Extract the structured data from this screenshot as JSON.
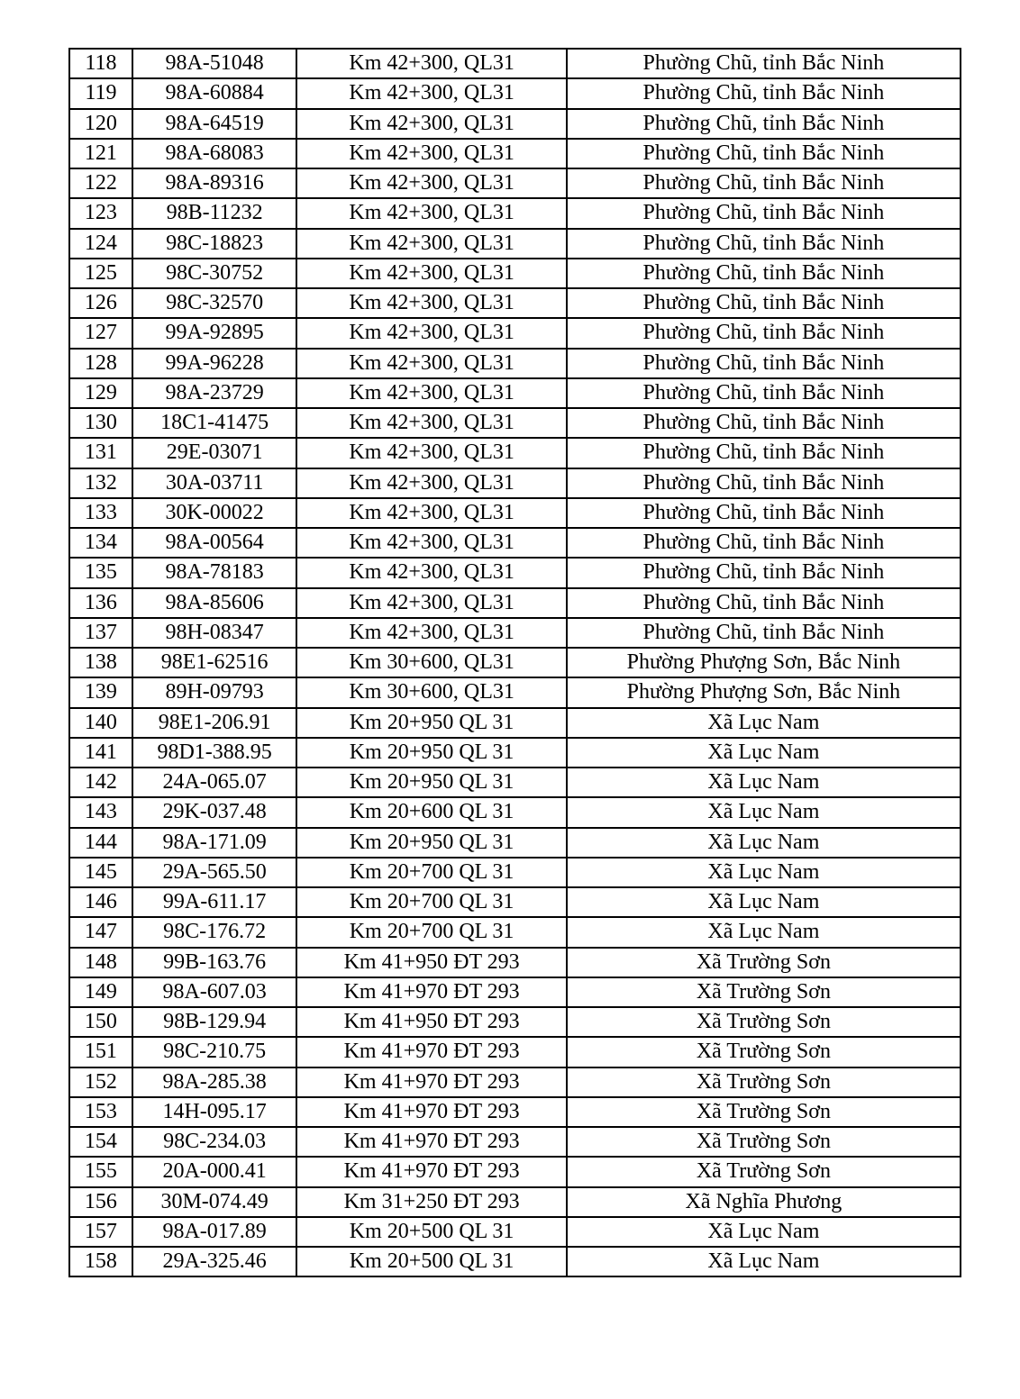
{
  "rows": [
    [
      "118",
      "98A-51048",
      "Km 42+300, QL31",
      "Phường Chũ, tỉnh Bắc Ninh"
    ],
    [
      "119",
      "98A-60884",
      "Km 42+300, QL31",
      "Phường Chũ, tỉnh Bắc Ninh"
    ],
    [
      "120",
      "98A-64519",
      "Km 42+300, QL31",
      "Phường Chũ, tỉnh Bắc Ninh"
    ],
    [
      "121",
      "98A-68083",
      "Km 42+300, QL31",
      "Phường Chũ, tỉnh Bắc Ninh"
    ],
    [
      "122",
      "98A-89316",
      "Km 42+300, QL31",
      "Phường Chũ, tỉnh Bắc Ninh"
    ],
    [
      "123",
      "98B-11232",
      "Km 42+300, QL31",
      "Phường Chũ, tỉnh Bắc Ninh"
    ],
    [
      "124",
      "98C-18823",
      "Km 42+300, QL31",
      "Phường Chũ, tỉnh Bắc Ninh"
    ],
    [
      "125",
      "98C-30752",
      "Km 42+300, QL31",
      "Phường Chũ, tỉnh Bắc Ninh"
    ],
    [
      "126",
      "98C-32570",
      "Km 42+300, QL31",
      "Phường Chũ, tỉnh Bắc Ninh"
    ],
    [
      "127",
      "99A-92895",
      "Km 42+300, QL31",
      "Phường Chũ, tỉnh Bắc Ninh"
    ],
    [
      "128",
      "99A-96228",
      "Km 42+300, QL31",
      "Phường Chũ, tỉnh Bắc Ninh"
    ],
    [
      "129",
      "98A-23729",
      "Km 42+300, QL31",
      "Phường Chũ, tỉnh Bắc Ninh"
    ],
    [
      "130",
      "18C1-41475",
      "Km 42+300, QL31",
      "Phường Chũ, tỉnh Bắc Ninh"
    ],
    [
      "131",
      "29E-03071",
      "Km 42+300, QL31",
      "Phường Chũ, tỉnh Bắc Ninh"
    ],
    [
      "132",
      "30A-03711",
      "Km 42+300, QL31",
      "Phường Chũ, tỉnh Bắc Ninh"
    ],
    [
      "133",
      "30K-00022",
      "Km 42+300, QL31",
      "Phường Chũ, tỉnh Bắc Ninh"
    ],
    [
      "134",
      "98A-00564",
      "Km 42+300, QL31",
      "Phường Chũ, tỉnh Bắc Ninh"
    ],
    [
      "135",
      "98A-78183",
      "Km 42+300, QL31",
      "Phường Chũ, tỉnh Bắc Ninh"
    ],
    [
      "136",
      "98A-85606",
      "Km 42+300, QL31",
      "Phường Chũ, tỉnh Bắc Ninh"
    ],
    [
      "137",
      "98H-08347",
      "Km 42+300, QL31",
      "Phường Chũ, tỉnh Bắc Ninh"
    ],
    [
      "138",
      "98E1-62516",
      "Km 30+600, QL31",
      "Phường Phượng Sơn, Bắc Ninh"
    ],
    [
      "139",
      "89H-09793",
      "Km 30+600, QL31",
      "Phường Phượng Sơn, Bắc Ninh"
    ],
    [
      "140",
      "98E1-206.91",
      "Km 20+950 QL 31",
      "Xã Lục Nam"
    ],
    [
      "141",
      "98D1-388.95",
      "Km 20+950 QL 31",
      "Xã Lục Nam"
    ],
    [
      "142",
      "24A-065.07",
      "Km 20+950 QL 31",
      "Xã Lục Nam"
    ],
    [
      "143",
      "29K-037.48",
      "Km 20+600 QL 31",
      "Xã Lục Nam"
    ],
    [
      "144",
      "98A-171.09",
      "Km 20+950 QL 31",
      "Xã Lục Nam"
    ],
    [
      "145",
      "29A-565.50",
      "Km 20+700 QL 31",
      "Xã Lục Nam"
    ],
    [
      "146",
      "99A-611.17",
      "Km 20+700 QL 31",
      "Xã Lục Nam"
    ],
    [
      "147",
      "98C-176.72",
      "Km 20+700 QL 31",
      "Xã Lục Nam"
    ],
    [
      "148",
      "99B-163.76",
      "Km 41+950 ĐT 293",
      "Xã Trường Sơn"
    ],
    [
      "149",
      "98A-607.03",
      "Km 41+970 ĐT 293",
      "Xã Trường Sơn"
    ],
    [
      "150",
      "98B-129.94",
      "Km 41+950 ĐT 293",
      "Xã Trường Sơn"
    ],
    [
      "151",
      "98C-210.75",
      "Km 41+970 ĐT 293",
      "Xã Trường Sơn"
    ],
    [
      "152",
      "98A-285.38",
      "Km 41+970 ĐT 293",
      "Xã Trường Sơn"
    ],
    [
      "153",
      "14H-095.17",
      "Km 41+970 ĐT 293",
      "Xã Trường Sơn"
    ],
    [
      "154",
      "98C-234.03",
      "Km 41+970 ĐT 293",
      "Xã Trường Sơn"
    ],
    [
      "155",
      "20A-000.41",
      "Km 41+970 ĐT 293",
      "Xã Trường Sơn"
    ],
    [
      "156",
      "30M-074.49",
      "Km 31+250 ĐT 293",
      "Xã Nghĩa Phương"
    ],
    [
      "157",
      "98A-017.89",
      "Km 20+500 QL 31",
      "Xã Lục Nam"
    ],
    [
      "158",
      "29A-325.46",
      "Km 20+500 QL 31",
      "Xã Lục Nam"
    ]
  ]
}
